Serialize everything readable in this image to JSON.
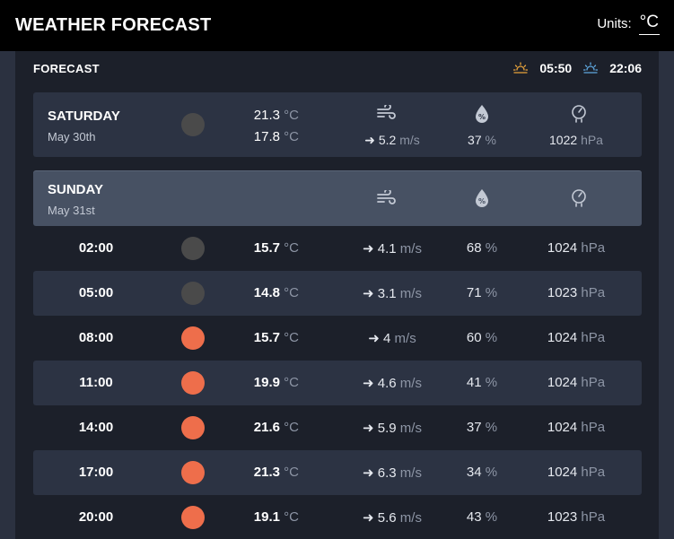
{
  "app": {
    "title": "WEATHER FORECAST",
    "units_label": "Units:",
    "units_value": "°C"
  },
  "forecast": {
    "header": "FORECAST",
    "sunrise": "05:50",
    "sunset": "22:06",
    "temp_unit": "°C",
    "wind_unit": "m/s",
    "humidity_unit": "%",
    "pressure_unit": "hPa",
    "wind_arrow": "➜",
    "saturday": {
      "name": "SATURDAY",
      "date": "May 30th",
      "condition_icon": "cloudy-icon",
      "temp_high": "21.3",
      "temp_low": "17.8",
      "wind": "5.2",
      "humidity": "37",
      "pressure": "1022"
    },
    "sunday": {
      "name": "SUNDAY",
      "date": "May 31st"
    },
    "hours": [
      {
        "time": "02:00",
        "condition_icon": "cloudy-icon",
        "temp": "15.7",
        "wind": "4.1",
        "humidity": "68",
        "pressure": "1024"
      },
      {
        "time": "05:00",
        "condition_icon": "cloudy-icon",
        "temp": "14.8",
        "wind": "3.1",
        "humidity": "71",
        "pressure": "1023"
      },
      {
        "time": "08:00",
        "condition_icon": "sunny-icon",
        "temp": "15.7",
        "wind": "4",
        "humidity": "60",
        "pressure": "1024"
      },
      {
        "time": "11:00",
        "condition_icon": "sunny-icon",
        "temp": "19.9",
        "wind": "4.6",
        "humidity": "41",
        "pressure": "1024"
      },
      {
        "time": "14:00",
        "condition_icon": "sunny-icon",
        "temp": "21.6",
        "wind": "5.9",
        "humidity": "37",
        "pressure": "1024"
      },
      {
        "time": "17:00",
        "condition_icon": "sunny-icon",
        "temp": "21.3",
        "wind": "6.3",
        "humidity": "34",
        "pressure": "1024"
      },
      {
        "time": "20:00",
        "condition_icon": "sunny-icon",
        "temp": "19.1",
        "wind": "5.6",
        "humidity": "43",
        "pressure": "1023"
      }
    ]
  },
  "colors": {
    "topbar": "#000000",
    "panel": "#1c202a",
    "row_alt": "#2c3343",
    "day_header": "#475163",
    "sun_condition": "#ee6e4b",
    "cloud_condition": "#4a4a4a",
    "sunrise_icon": "#e8a33b",
    "sunset_icon": "#5fa8e0"
  }
}
